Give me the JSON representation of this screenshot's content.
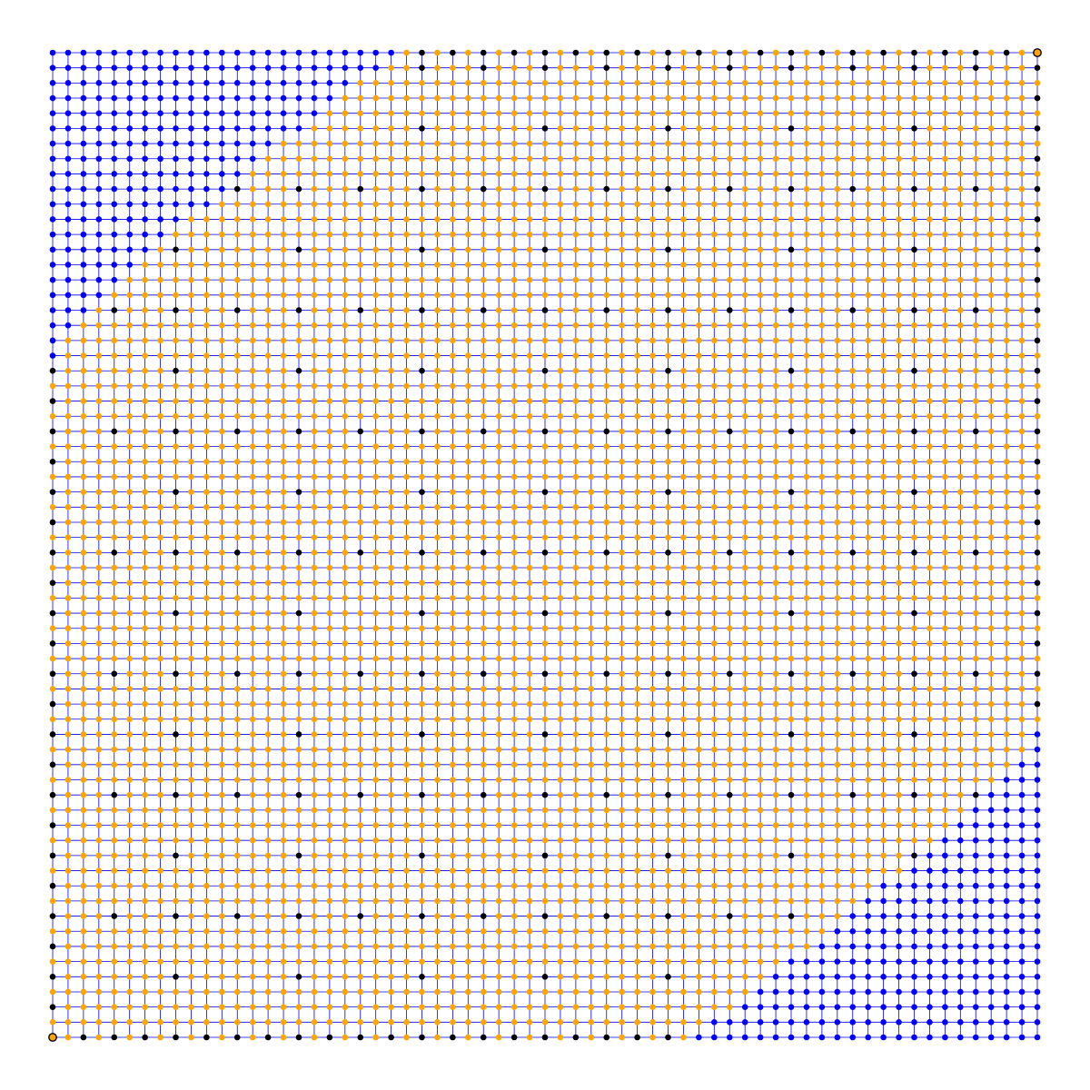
{
  "chart_data": {
    "type": "grid-graph",
    "title": "",
    "grid": {
      "columns": 65,
      "rows": 66
    },
    "node_colors": {
      "default": "#ffa500",
      "landmark": "#000000",
      "region": "#0000ff",
      "endpoint_fill": "#ffa500",
      "endpoint_stroke": "#000000"
    },
    "edge_color": "#0000ff",
    "landmark_rule": {
      "edge_step": 2,
      "major_step": 8,
      "minor_step": 4
    },
    "regions": [
      {
        "name": "",
        "corner": "top-left",
        "extent_by_row": [
          23,
          22,
          20,
          19,
          18,
          17,
          15,
          14,
          13,
          12,
          11,
          9,
          8,
          7,
          6,
          5,
          4,
          3,
          2,
          1,
          1
        ]
      },
      {
        "name": "",
        "corner": "bottom-right",
        "extent_by_row": [
          23,
          22,
          20,
          19,
          18,
          17,
          15,
          14,
          13,
          12,
          11,
          9,
          8,
          7,
          6,
          5,
          4,
          3,
          2,
          1,
          1
        ]
      }
    ],
    "endpoints": [
      {
        "col": 0,
        "row": 65
      },
      {
        "col": 64,
        "row": 0
      }
    ]
  }
}
